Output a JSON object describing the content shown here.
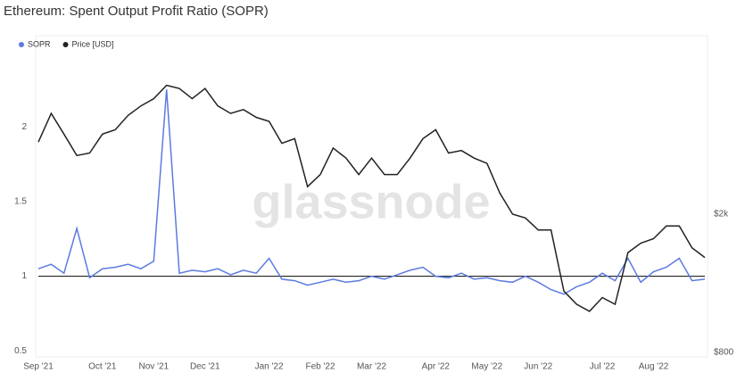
{
  "chart_data": {
    "type": "line",
    "title": "Ethereum: Spent Output Profit Ratio (SOPR)",
    "watermark": "glassnode",
    "categories": [
      "Sep '21",
      null,
      null,
      null,
      null,
      "Oct '21",
      null,
      null,
      null,
      "Nov '21",
      null,
      null,
      null,
      "Dec '21",
      null,
      null,
      null,
      null,
      "Jan '22",
      null,
      null,
      null,
      "Feb '22",
      null,
      null,
      null,
      "Mar '22",
      null,
      null,
      null,
      null,
      "Apr '22",
      null,
      null,
      null,
      "May '22",
      null,
      null,
      null,
      "Jun '22",
      null,
      null,
      null,
      null,
      "Jul '22",
      null,
      null,
      null,
      "Aug '22",
      null,
      null,
      null,
      null
    ],
    "series": [
      {
        "name": "SOPR",
        "color": "#5b7be0",
        "values": [
          1.05,
          1.08,
          1.02,
          1.32,
          0.99,
          1.05,
          1.06,
          1.08,
          1.05,
          1.1,
          2.25,
          1.02,
          1.04,
          1.03,
          1.05,
          1.01,
          1.04,
          1.02,
          1.12,
          0.98,
          0.97,
          0.94,
          0.96,
          0.98,
          0.96,
          0.97,
          1.0,
          0.98,
          1.01,
          1.04,
          1.06,
          1.0,
          0.99,
          1.02,
          0.98,
          0.99,
          0.97,
          0.96,
          1.0,
          0.96,
          0.91,
          0.88,
          0.93,
          0.96,
          1.02,
          0.97,
          1.12,
          0.96,
          1.03,
          1.06,
          1.12,
          0.97,
          0.98
        ]
      },
      {
        "name": "Price [USD]",
        "color": "#222222",
        "axis": "y2",
        "values": [
          3225,
          3900,
          3400,
          2950,
          3000,
          3400,
          3500,
          3850,
          4100,
          4300,
          4700,
          4600,
          4300,
          4600,
          4100,
          3900,
          4000,
          3800,
          3700,
          3200,
          3300,
          2400,
          2600,
          3100,
          2900,
          2600,
          2900,
          2600,
          2600,
          2900,
          3300,
          3500,
          3000,
          3050,
          2900,
          2800,
          2300,
          2000,
          1950,
          1800,
          1800,
          1200,
          1100,
          1050,
          1150,
          1100,
          1550,
          1650,
          1700,
          1850,
          1850,
          1600,
          1500
        ]
      }
    ],
    "ylim": [
      0.46,
      2.58
    ],
    "yticks": [
      0.5,
      1,
      1.5,
      2
    ],
    "y2lim": [
      776,
      6340
    ],
    "y2ticks": [
      {
        "value": 800,
        "label": "$800"
      },
      {
        "value": 2000,
        "label": "$2k"
      }
    ],
    "y2log": true
  }
}
